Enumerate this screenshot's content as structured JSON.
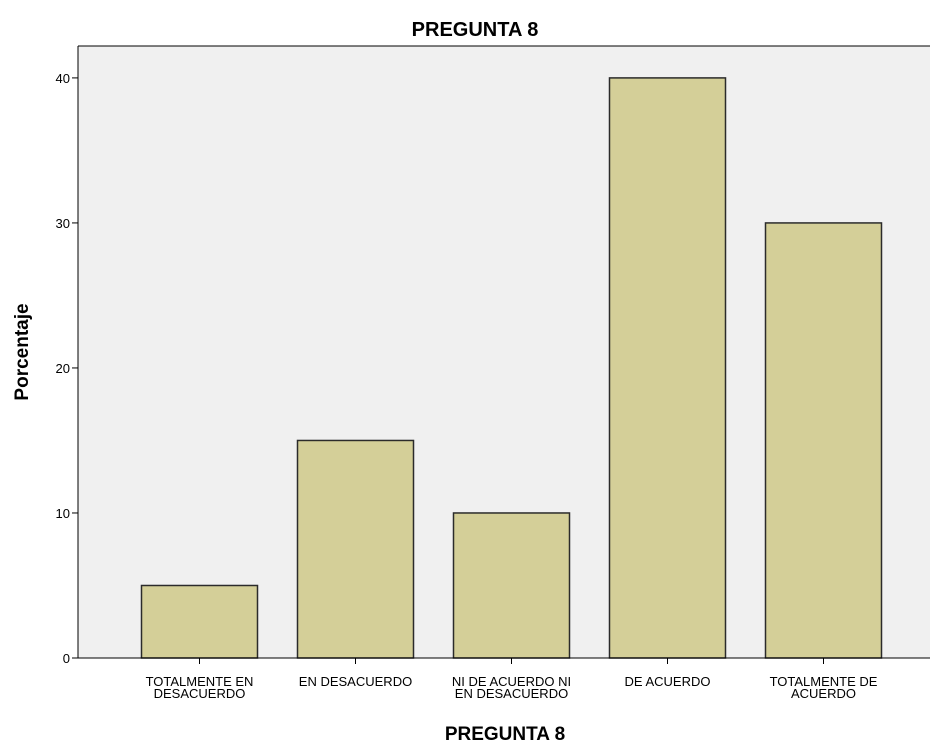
{
  "chart_data": {
    "type": "bar",
    "title": "PREGUNTA 8",
    "xlabel": "PREGUNTA 8",
    "ylabel": "Porcentaje",
    "categories": [
      [
        "TOTALMENTE EN",
        "DESACUERDO"
      ],
      [
        "EN DESACUERDO"
      ],
      [
        "NI DE ACUERDO NI",
        "EN DESACUERDO"
      ],
      [
        "DE ACUERDO"
      ],
      [
        "TOTALMENTE DE",
        "ACUERDO"
      ]
    ],
    "values": [
      5,
      15,
      10,
      40,
      30
    ],
    "ylim": [
      0,
      42.2
    ],
    "yticks": [
      0,
      10,
      20,
      30,
      40
    ],
    "grid": false,
    "legend": "none",
    "colors": {
      "bar_fill": "#d4cf98",
      "bar_stroke": "#2b2b2b",
      "plot_background": "#f0f0f0",
      "axis": "#000000"
    }
  }
}
